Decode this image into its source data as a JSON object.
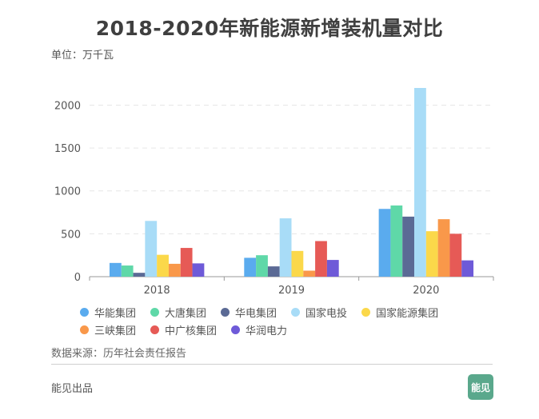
{
  "title": "2018-2020年新能源新增装机量对比",
  "unit": "单位：万千瓦",
  "source": "数据来源：历年社会责任报告",
  "brand": "能见出品",
  "logo_text": "能见",
  "chart_data": {
    "type": "bar",
    "categories": [
      "2018",
      "2019",
      "2020"
    ],
    "ylim": [
      0,
      2200
    ],
    "yticks": [
      0,
      500,
      1000,
      1500,
      2000
    ],
    "grid": true,
    "legend_position": "bottom",
    "series": [
      {
        "name": "华能集团",
        "color": "#5aabee",
        "values": [
          160,
          220,
          790
        ]
      },
      {
        "name": "大唐集团",
        "color": "#5fd8a8",
        "values": [
          130,
          250,
          830
        ]
      },
      {
        "name": "华电集团",
        "color": "#5b6a95",
        "values": [
          45,
          120,
          700
        ]
      },
      {
        "name": "国家电投",
        "color": "#a8dcf7",
        "values": [
          650,
          680,
          2200
        ]
      },
      {
        "name": "国家能源集团",
        "color": "#fbd84a",
        "values": [
          255,
          300,
          530
        ]
      },
      {
        "name": "三峡集团",
        "color": "#f9984a",
        "values": [
          150,
          70,
          670
        ]
      },
      {
        "name": "中广核集团",
        "color": "#e65a56",
        "values": [
          335,
          415,
          500
        ]
      },
      {
        "name": "华润电力",
        "color": "#6e5ad8",
        "values": [
          155,
          195,
          190
        ]
      }
    ]
  }
}
